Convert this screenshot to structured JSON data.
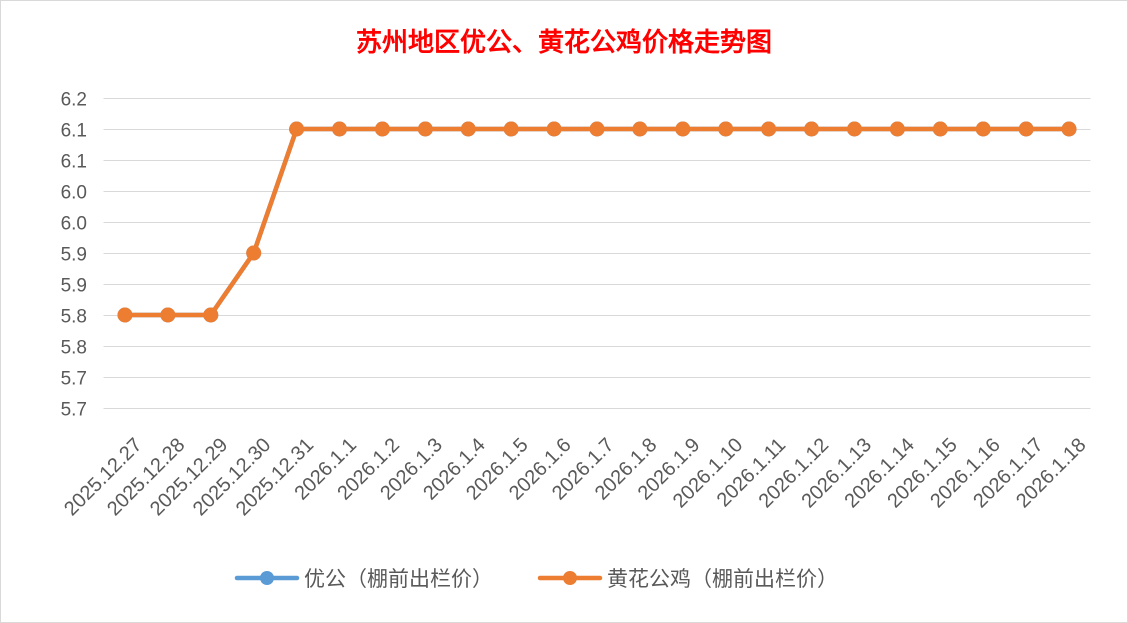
{
  "chart_data": {
    "type": "line",
    "title": "苏州地区优公、黄花公鸡价格走势图",
    "title_color": "#FF0000",
    "categories": [
      "2025.12.27",
      "2025.12.28",
      "2025.12.29",
      "2025.12.30",
      "2025.12.31",
      "2026.1.1",
      "2026.1.2",
      "2026.1.3",
      "2026.1.4",
      "2026.1.5",
      "2026.1.6",
      "2026.1.7",
      "2026.1.8",
      "2026.1.9",
      "2026.1.10",
      "2026.1.11",
      "2026.1.12",
      "2026.1.13",
      "2026.1.14",
      "2026.1.15",
      "2026.1.16",
      "2026.1.17",
      "2026.1.18"
    ],
    "series": [
      {
        "name": "优公（棚前出栏价）",
        "color": "#5B9BD5",
        "values": [
          5.8,
          5.8,
          5.8,
          5.9,
          6.1,
          6.1,
          6.1,
          6.1,
          6.1,
          6.1,
          6.1,
          6.1,
          6.1,
          6.1,
          6.1,
          6.1,
          6.1,
          6.1,
          6.1,
          6.1,
          6.1,
          6.1,
          6.1
        ]
      },
      {
        "name": "黄花公鸡（棚前出栏价）",
        "color": "#ED7D31",
        "values": [
          5.8,
          5.8,
          5.8,
          5.9,
          6.1,
          6.1,
          6.1,
          6.1,
          6.1,
          6.1,
          6.1,
          6.1,
          6.1,
          6.1,
          6.1,
          6.1,
          6.1,
          6.1,
          6.1,
          6.1,
          6.1,
          6.1,
          6.1
        ]
      }
    ],
    "ylim": [
      5.65,
      6.15
    ],
    "yticks": [
      5.65,
      5.7,
      5.75,
      5.8,
      5.85,
      5.9,
      5.95,
      6.0,
      6.05,
      6.1,
      6.15
    ],
    "ytick_labels": [
      "5.7",
      "5.7",
      "5.8",
      "5.8",
      "5.9",
      "5.9",
      "6.0",
      "6.0",
      "6.1",
      "6.1",
      "6.2"
    ],
    "xlabel": "",
    "ylabel": "",
    "grid": true,
    "legend": "bottom",
    "gridline_color": "#D9D9D9",
    "tick_label_color": "#595959"
  }
}
